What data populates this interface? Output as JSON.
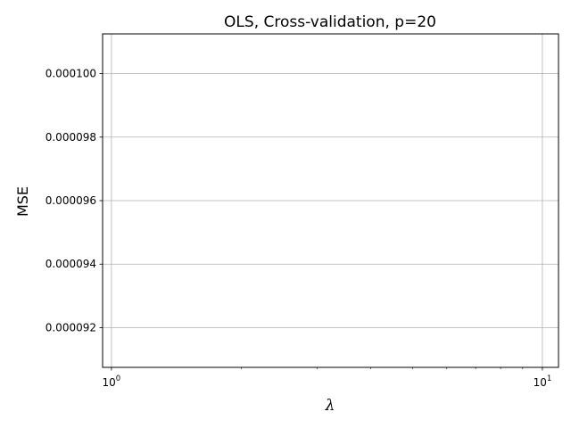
{
  "chart_data": {
    "type": "line",
    "title": "OLS, Cross-validation, p=20",
    "xlabel": "λ",
    "ylabel": "MSE",
    "x_scale": "log",
    "xlim": [
      0.954,
      10.9
    ],
    "ylim": [
      9.075e-05,
      0.00010125
    ],
    "x_ticks": [
      {
        "value": 1,
        "base": "10",
        "exponent": "0"
      },
      {
        "value": 10,
        "base": "10",
        "exponent": "1"
      }
    ],
    "x_minor_ticks": [
      2,
      3,
      4,
      5,
      6,
      7,
      8,
      9
    ],
    "y_ticks": [
      {
        "value": 9.2e-05,
        "label": "0.000092"
      },
      {
        "value": 9.4e-05,
        "label": "0.000094"
      },
      {
        "value": 9.6e-05,
        "label": "0.000096"
      },
      {
        "value": 9.8e-05,
        "label": "0.000098"
      },
      {
        "value": 0.0001,
        "label": "0.000100"
      }
    ],
    "grid": true,
    "series": []
  }
}
